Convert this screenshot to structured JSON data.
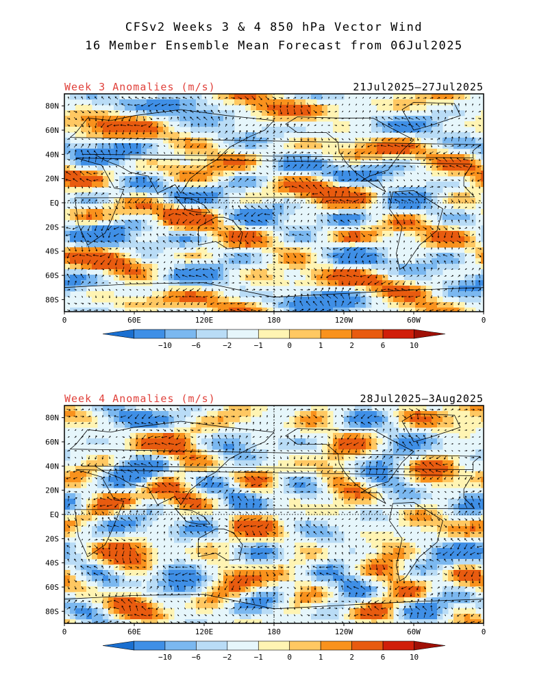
{
  "header": {
    "title_line1": "CFSv2 Weeks 3 & 4 850 hPa Vector Wind",
    "title_line2": "16 Member Ensemble Mean Forecast from 06Jul2025"
  },
  "colors": {
    "title_red": "#e0403a",
    "scale": [
      "#1a6fd0",
      "#3f8fe6",
      "#7bb8f0",
      "#b9dcf6",
      "#e6f6fb",
      "#fff4b3",
      "#ffc862",
      "#f9921d",
      "#e85b0f",
      "#d01f0a",
      "#a01006"
    ]
  },
  "panels": [
    {
      "title": "Week 3 Anomalies (m/s)",
      "date_range": "21Jul2025–27Jul2025",
      "seed": 11
    },
    {
      "title": "Week 4 Anomalies (m/s)",
      "date_range": "28Jul2025–3Aug2025",
      "seed": 47
    }
  ],
  "axes": {
    "lat_labels": [
      "80N",
      "60N",
      "40N",
      "20N",
      "EQ",
      "20S",
      "40S",
      "60S",
      "80S"
    ],
    "lon_labels": [
      "0",
      "60E",
      "120E",
      "180",
      "120W",
      "60W",
      "0"
    ]
  },
  "colorbar": {
    "labels": [
      "−10",
      "−6",
      "−2",
      "−1",
      "0",
      "1",
      "2",
      "6",
      "10"
    ]
  }
}
